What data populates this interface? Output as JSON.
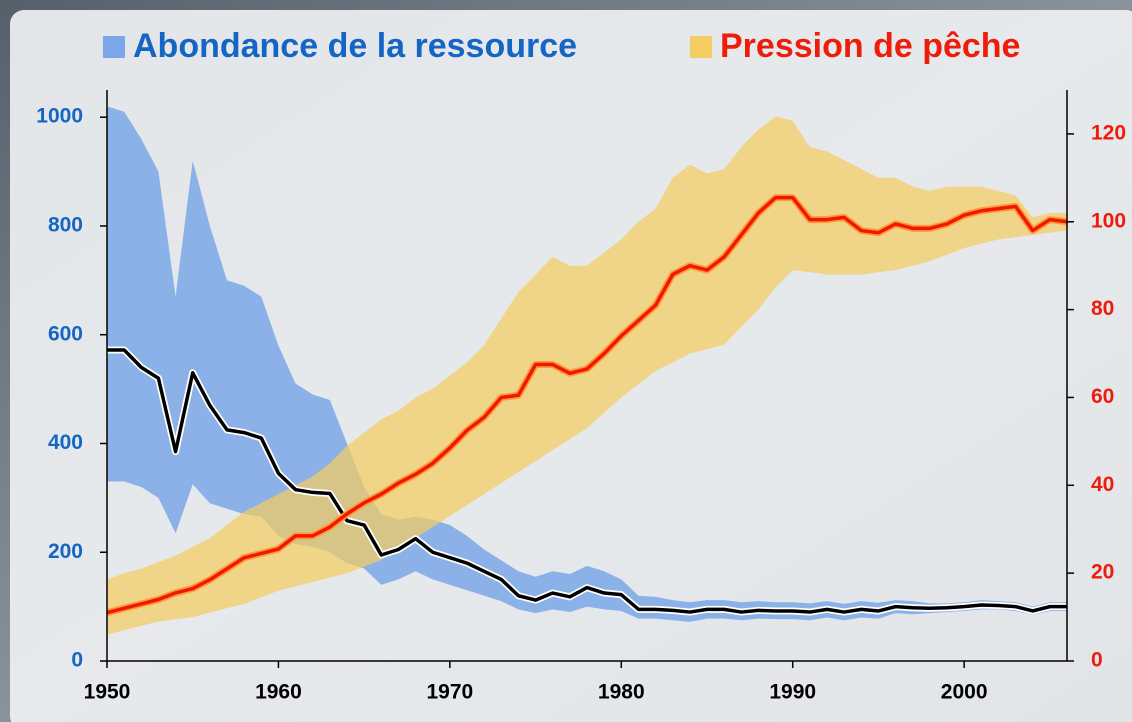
{
  "chart_data": {
    "type": "line",
    "x": [
      1950,
      1951,
      1952,
      1953,
      1954,
      1955,
      1956,
      1957,
      1958,
      1959,
      1960,
      1961,
      1962,
      1963,
      1964,
      1965,
      1966,
      1967,
      1968,
      1969,
      1970,
      1971,
      1972,
      1973,
      1974,
      1975,
      1976,
      1977,
      1978,
      1979,
      1980,
      1981,
      1982,
      1983,
      1984,
      1985,
      1986,
      1987,
      1988,
      1989,
      1990,
      1991,
      1992,
      1993,
      1994,
      1995,
      1996,
      1997,
      1998,
      1999,
      2000,
      2001,
      2002,
      2003,
      2004,
      2005,
      2006
    ],
    "xlim": [
      1950,
      2006
    ],
    "xticks": [
      1950,
      1960,
      1970,
      1980,
      1990,
      2000
    ],
    "ylim": [
      0,
      1050
    ],
    "yticks": [
      0,
      200,
      400,
      600,
      800,
      1000
    ],
    "y2lim": [
      0,
      130
    ],
    "y2ticks": [
      0,
      20,
      40,
      60,
      80,
      100,
      120
    ],
    "series": [
      {
        "name": "Abondance de la ressource",
        "color": "#7aa7e8",
        "label_color": "#1566c4",
        "line_color": "#000000",
        "halo_color": "#ffffff",
        "axis": "y",
        "values": [
          572,
          572,
          540,
          520,
          385,
          530,
          470,
          425,
          420,
          410,
          345,
          315,
          310,
          308,
          258,
          250,
          195,
          205,
          225,
          200,
          190,
          180,
          165,
          150,
          120,
          112,
          125,
          118,
          135,
          125,
          122,
          95,
          95,
          93,
          90,
          95,
          95,
          90,
          93,
          92,
          92,
          90,
          95,
          90,
          95,
          92,
          100,
          98,
          97,
          98,
          100,
          103,
          102,
          100,
          92,
          100,
          100
        ],
        "upper": [
          1020,
          1010,
          960,
          900,
          670,
          920,
          800,
          700,
          690,
          670,
          580,
          510,
          490,
          480,
          400,
          320,
          270,
          260,
          265,
          260,
          250,
          230,
          205,
          185,
          165,
          155,
          165,
          160,
          175,
          165,
          150,
          120,
          118,
          112,
          108,
          112,
          112,
          108,
          110,
          108,
          108,
          106,
          110,
          105,
          110,
          107,
          112,
          110,
          106,
          106,
          108,
          112,
          110,
          108,
          100,
          108,
          108
        ],
        "lower": [
          330,
          330,
          320,
          300,
          235,
          325,
          290,
          280,
          270,
          265,
          230,
          215,
          210,
          200,
          180,
          170,
          140,
          150,
          165,
          150,
          140,
          130,
          120,
          110,
          95,
          88,
          95,
          90,
          100,
          95,
          92,
          78,
          78,
          75,
          72,
          78,
          78,
          75,
          78,
          77,
          77,
          75,
          80,
          75,
          80,
          78,
          88,
          86,
          88,
          90,
          92,
          95,
          95,
          92,
          85,
          92,
          92
        ]
      },
      {
        "name": "Pression de pêche",
        "color": "#f4cd62",
        "label_color": "#ee1c0a",
        "line_color": "#f01800",
        "halo_color": "#ff9a3a",
        "axis": "y2",
        "values": [
          11,
          12,
          13,
          14,
          15.5,
          16.5,
          18.5,
          21,
          23.5,
          24.5,
          25.5,
          28.5,
          28.5,
          30.5,
          33.5,
          36,
          38,
          40.5,
          42.5,
          45,
          48.5,
          52.5,
          55.5,
          60,
          60.5,
          67.5,
          67.5,
          65.5,
          66.5,
          70,
          74,
          77.5,
          81,
          88,
          90,
          89,
          92,
          97,
          102,
          105.5,
          105.5,
          100.5,
          100.5,
          101,
          98,
          97.5,
          99.5,
          98.5,
          98.5,
          99.5,
          101.5,
          102.5,
          103,
          103.5,
          98,
          100.5,
          100
        ],
        "upper": [
          18.5,
          20,
          21,
          22.5,
          24,
          26,
          28,
          31,
          34,
          36,
          38,
          40,
          42,
          45,
          49,
          52,
          55,
          57,
          60,
          62,
          65,
          68,
          72,
          78,
          84,
          88,
          92,
          90,
          90,
          93,
          96,
          100,
          103,
          110,
          113,
          111,
          112,
          117,
          121,
          124,
          123,
          117,
          116,
          114,
          112,
          110,
          110,
          108,
          107,
          108,
          108,
          108,
          107,
          106,
          101,
          102,
          102
        ],
        "lower": [
          6,
          7,
          8,
          9,
          9.5,
          10,
          11,
          12,
          13,
          14.5,
          16,
          17,
          18,
          19,
          20,
          21.5,
          23,
          25.5,
          28,
          30.5,
          33,
          35.5,
          38,
          40.5,
          43,
          45.5,
          48,
          50.5,
          53,
          56.5,
          60,
          63,
          66,
          68,
          70,
          71,
          72,
          76,
          80,
          85,
          89,
          88.5,
          88,
          88,
          88,
          88.5,
          89,
          90,
          91,
          92.5,
          94,
          95,
          96,
          96.5,
          97,
          97.5,
          98
        ]
      }
    ]
  }
}
